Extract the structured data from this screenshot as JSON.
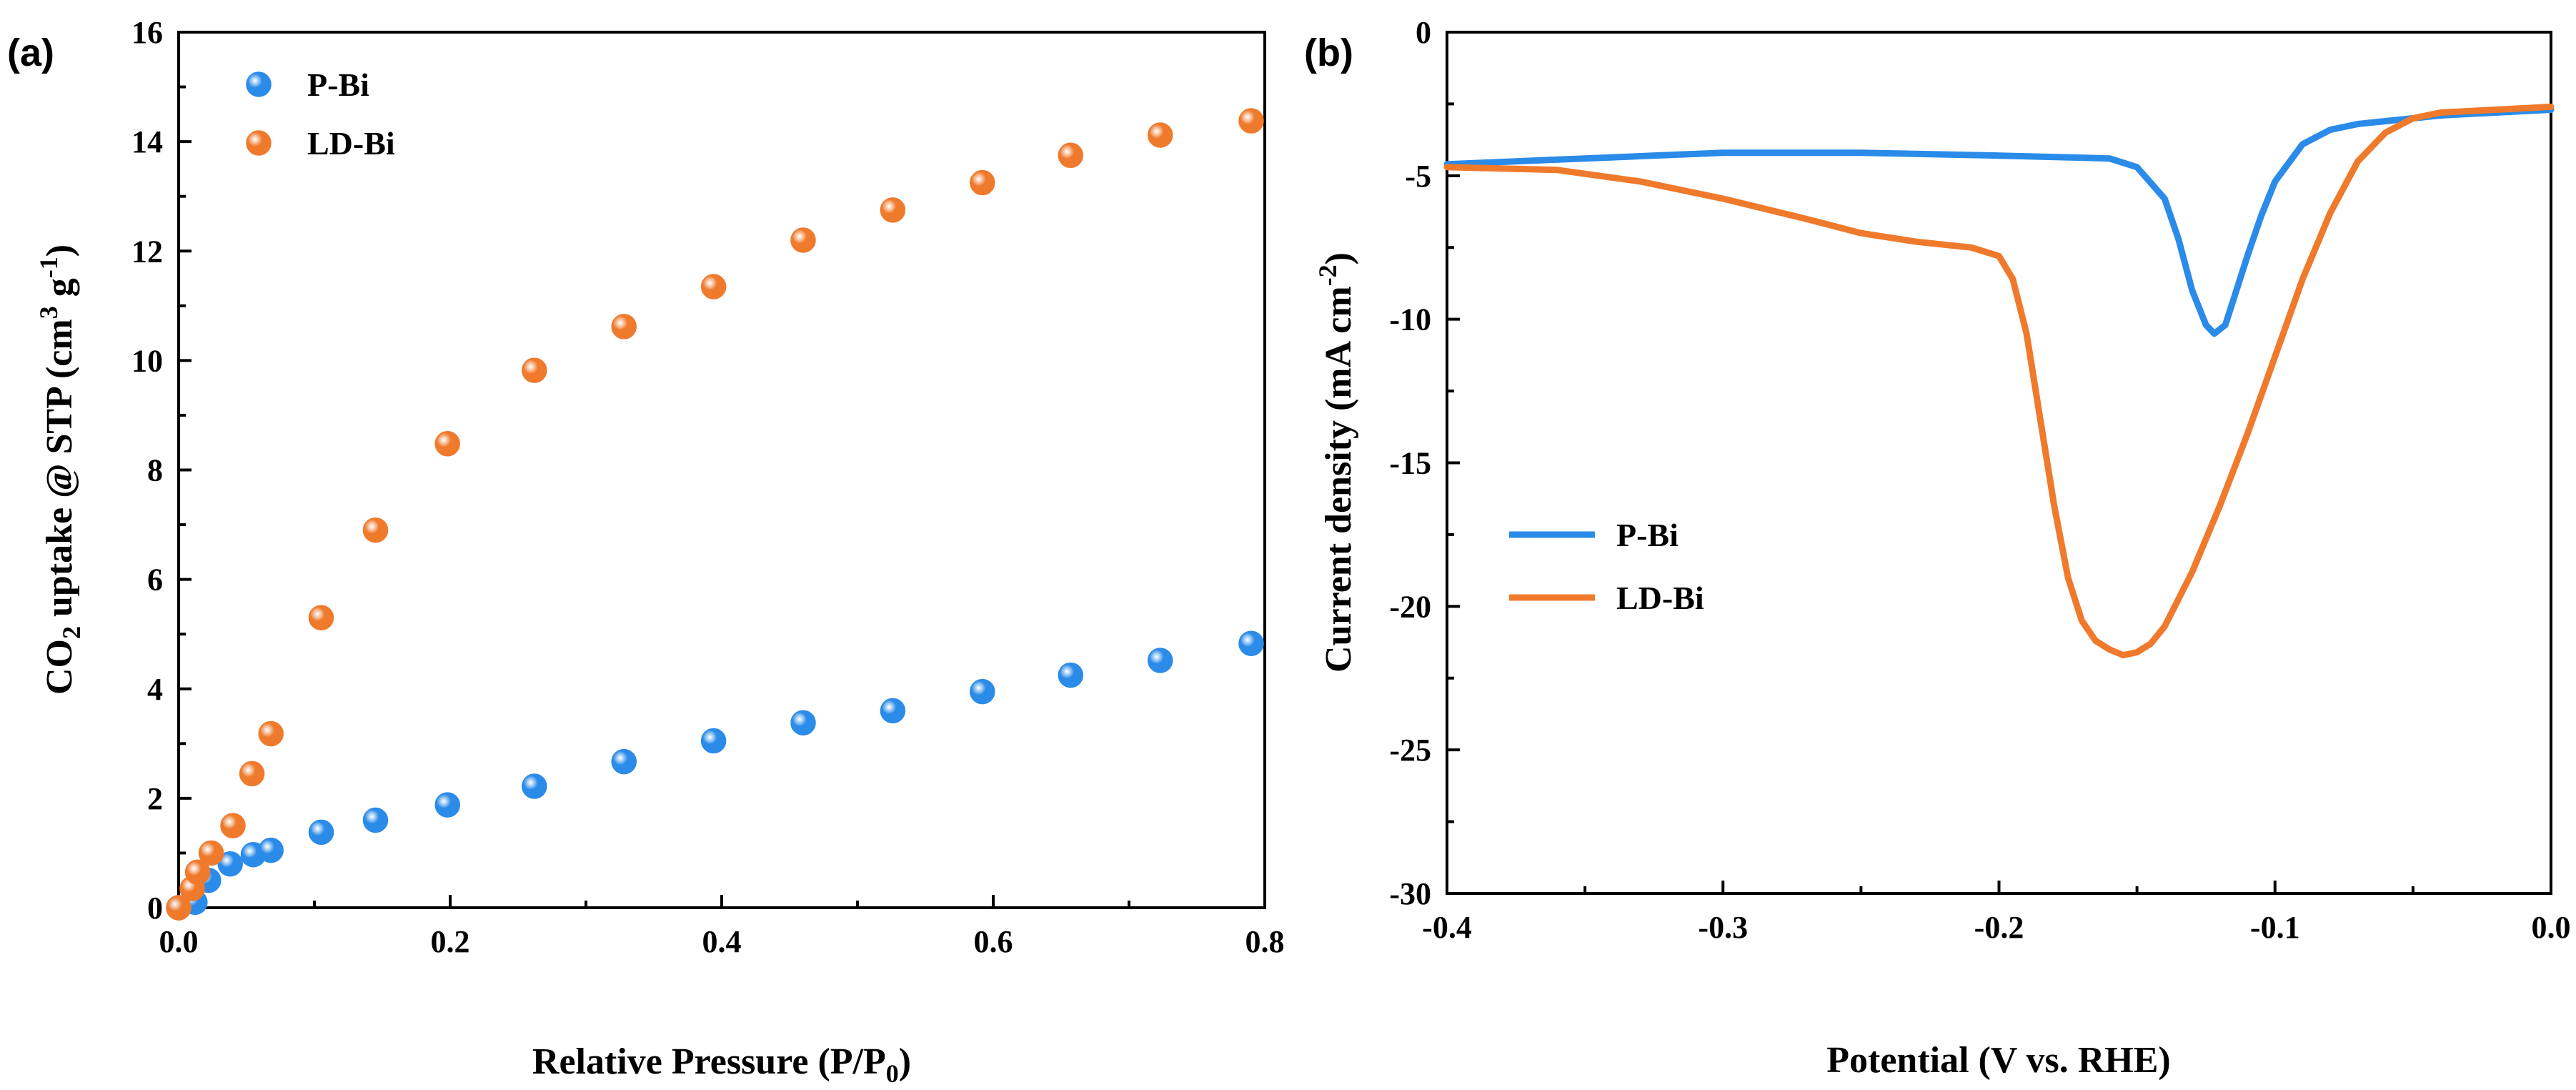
{
  "colors": {
    "series1": "#2a8be8",
    "series2": "#ef7a2c",
    "axis": "#000000"
  },
  "panels": [
    {
      "panel_label": "(a)",
      "xlabel": "Relative Pressure (P/P",
      "xlabel_sub": "0",
      "xlabel_tail": ")",
      "ylabel": "CO",
      "ylabel_sub": "2",
      "ylabel_mid": " uptake @ STP (cm",
      "ylabel_sup1": "3",
      "ylabel_mid2": " g",
      "ylabel_sup2": "-1",
      "ylabel_tail": ")"
    },
    {
      "panel_label": "(b)",
      "xlabel": "Potential (V vs. RHE)",
      "ylabel": "Current density (mA cm",
      "ylabel_sup": "-2",
      "ylabel_tail": ")"
    }
  ],
  "chart_data": [
    {
      "type": "scatter",
      "xlim": [
        0,
        0.8
      ],
      "ylim": [
        0,
        16
      ],
      "xticks": [
        "0.0",
        "0.2",
        "0.4",
        "0.6",
        "0.8"
      ],
      "yticks": [
        "0",
        "2",
        "4",
        "6",
        "8",
        "10",
        "12",
        "14",
        "16"
      ],
      "legend_position": "top-left",
      "series": [
        {
          "name": "P-Bi",
          "x": [
            0.0,
            0.012,
            0.022,
            0.038,
            0.055,
            0.068,
            0.105,
            0.145,
            0.198,
            0.262,
            0.328,
            0.394,
            0.46,
            0.526,
            0.592,
            0.657,
            0.723,
            0.79
          ],
          "y": [
            0.0,
            0.1,
            0.5,
            0.8,
            0.97,
            1.05,
            1.38,
            1.6,
            1.88,
            2.22,
            2.67,
            3.05,
            3.38,
            3.6,
            3.95,
            4.25,
            4.52,
            4.83
          ]
        },
        {
          "name": "LD-Bi",
          "x": [
            0.0,
            0.01,
            0.014,
            0.024,
            0.04,
            0.054,
            0.068,
            0.105,
            0.145,
            0.198,
            0.262,
            0.328,
            0.394,
            0.46,
            0.526,
            0.592,
            0.657,
            0.723,
            0.79
          ],
          "y": [
            0.0,
            0.35,
            0.65,
            1.0,
            1.5,
            2.45,
            3.18,
            5.3,
            6.9,
            8.48,
            9.82,
            10.62,
            11.35,
            12.2,
            12.75,
            13.25,
            13.75,
            14.12,
            14.38
          ]
        }
      ]
    },
    {
      "type": "line",
      "xlim": [
        -0.4,
        0.0
      ],
      "ylim": [
        -30,
        0
      ],
      "xticks": [
        "-0.4",
        "-0.3",
        "-0.2",
        "-0.1",
        "0.0"
      ],
      "yticks": [
        "0",
        "-5",
        "-10",
        "-15",
        "-20",
        "-25",
        "-30"
      ],
      "legend_position": "center-left",
      "series": [
        {
          "name": "P-Bi",
          "x": [
            -0.4,
            -0.35,
            -0.3,
            -0.25,
            -0.2,
            -0.16,
            -0.15,
            -0.14,
            -0.135,
            -0.13,
            -0.125,
            -0.122,
            -0.118,
            -0.115,
            -0.11,
            -0.105,
            -0.1,
            -0.09,
            -0.08,
            -0.07,
            -0.06,
            -0.05,
            -0.04,
            -0.02,
            0.0
          ],
          "y": [
            -4.6,
            -4.4,
            -4.2,
            -4.2,
            -4.3,
            -4.4,
            -4.7,
            -5.8,
            -7.2,
            -9.0,
            -10.2,
            -10.5,
            -10.2,
            -9.3,
            -7.8,
            -6.4,
            -5.2,
            -3.9,
            -3.4,
            -3.2,
            -3.1,
            -3.0,
            -2.9,
            -2.8,
            -2.7
          ]
        },
        {
          "name": "LD-Bi",
          "x": [
            -0.4,
            -0.36,
            -0.33,
            -0.3,
            -0.27,
            -0.25,
            -0.23,
            -0.21,
            -0.2,
            -0.195,
            -0.19,
            -0.185,
            -0.18,
            -0.175,
            -0.17,
            -0.165,
            -0.16,
            -0.155,
            -0.15,
            -0.145,
            -0.14,
            -0.13,
            -0.12,
            -0.11,
            -0.1,
            -0.09,
            -0.08,
            -0.07,
            -0.06,
            -0.05,
            -0.04,
            -0.02,
            0.0
          ],
          "y": [
            -4.7,
            -4.8,
            -5.2,
            -5.8,
            -6.5,
            -7.0,
            -7.3,
            -7.5,
            -7.8,
            -8.6,
            -10.5,
            -13.5,
            -16.5,
            -19.0,
            -20.5,
            -21.2,
            -21.5,
            -21.7,
            -21.6,
            -21.3,
            -20.7,
            -18.8,
            -16.5,
            -14.0,
            -11.3,
            -8.6,
            -6.3,
            -4.5,
            -3.5,
            -3.0,
            -2.8,
            -2.7,
            -2.6
          ]
        }
      ]
    }
  ]
}
